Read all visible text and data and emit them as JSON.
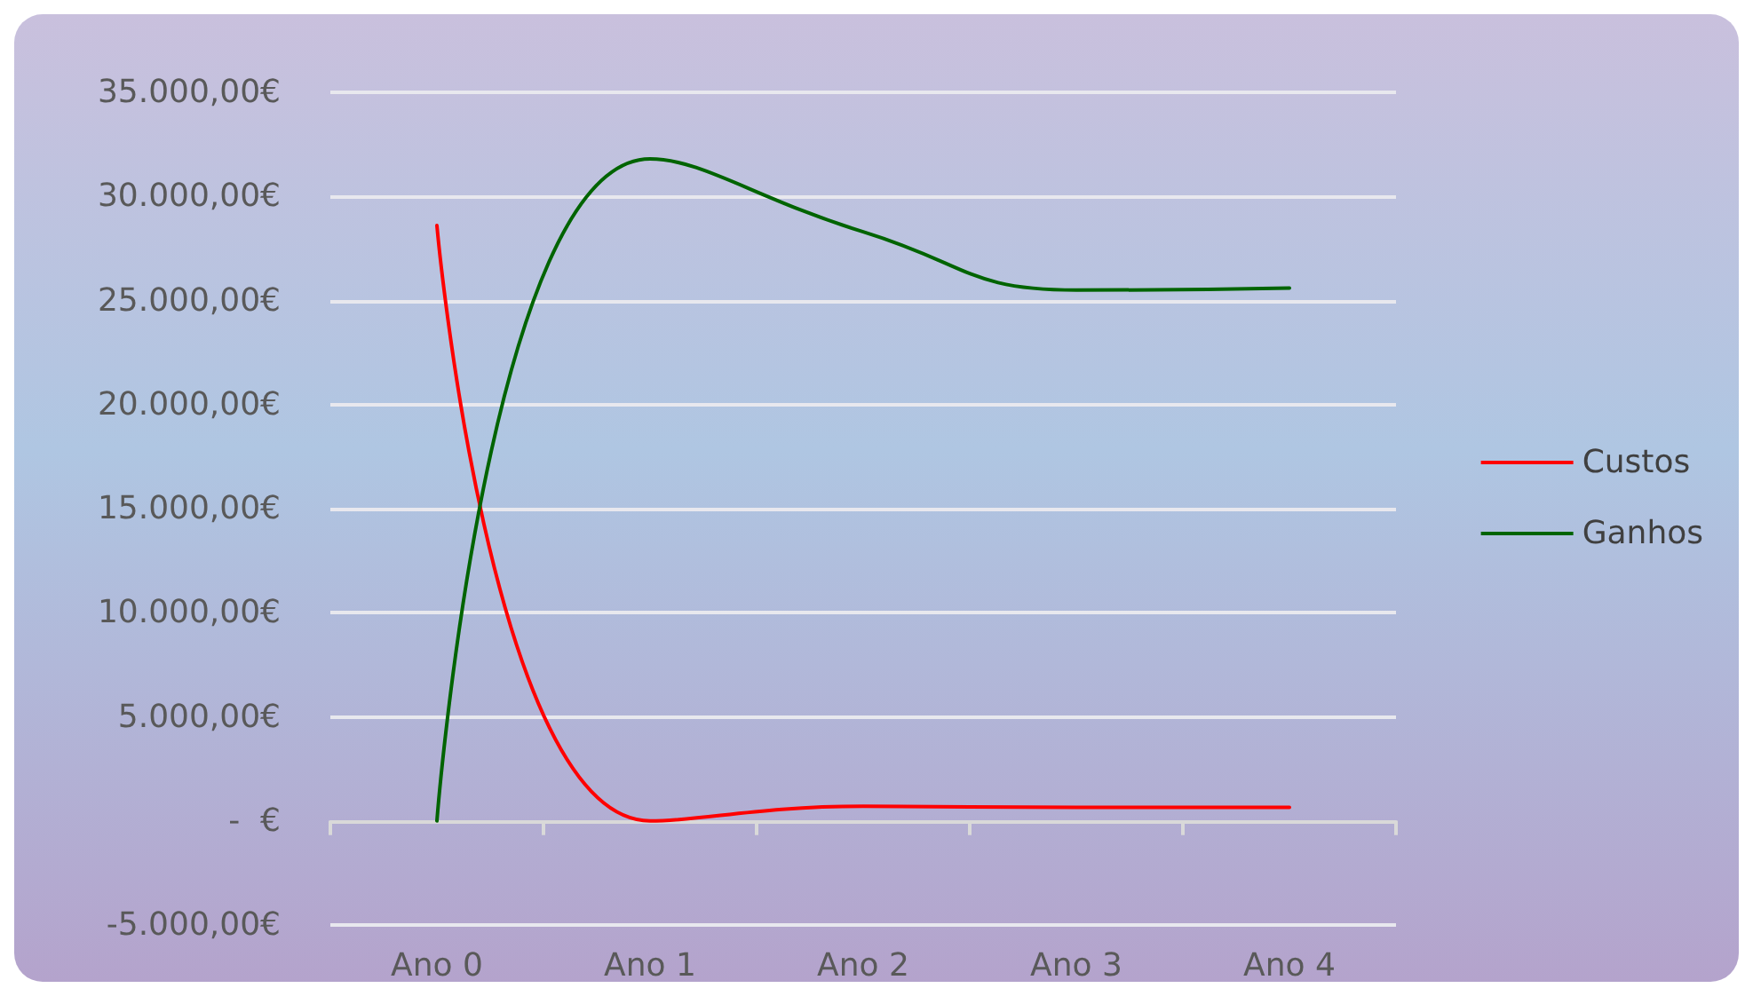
{
  "chart_data": {
    "type": "line",
    "categories": [
      "Ano 0",
      "Ano 1",
      "Ano 2",
      "Ano 3",
      "Ano 4"
    ],
    "series": [
      {
        "name": "Custos",
        "color": "#ff0000",
        "values": [
          28600,
          0,
          700,
          650,
          650
        ]
      },
      {
        "name": "Ganhos",
        "color": "#006400",
        "values": [
          0,
          31800,
          28300,
          25500,
          25600
        ]
      }
    ],
    "ylim": [
      -5000,
      35000
    ],
    "yticks": [
      {
        "value": -5000,
        "label": "-5.000,00€"
      },
      {
        "value": 0,
        "label": "-  €"
      },
      {
        "value": 5000,
        "label": "5.000,00€"
      },
      {
        "value": 10000,
        "label": "10.000,00€"
      },
      {
        "value": 15000,
        "label": "15.000,00€"
      },
      {
        "value": 20000,
        "label": "20.000,00€"
      },
      {
        "value": 25000,
        "label": "25.000,00€"
      },
      {
        "value": 30000,
        "label": "30.000,00€"
      },
      {
        "value": 35000,
        "label": "35.000,00€"
      }
    ],
    "grid": "y",
    "legend": "right",
    "marker": "none",
    "line_style": "solid"
  }
}
